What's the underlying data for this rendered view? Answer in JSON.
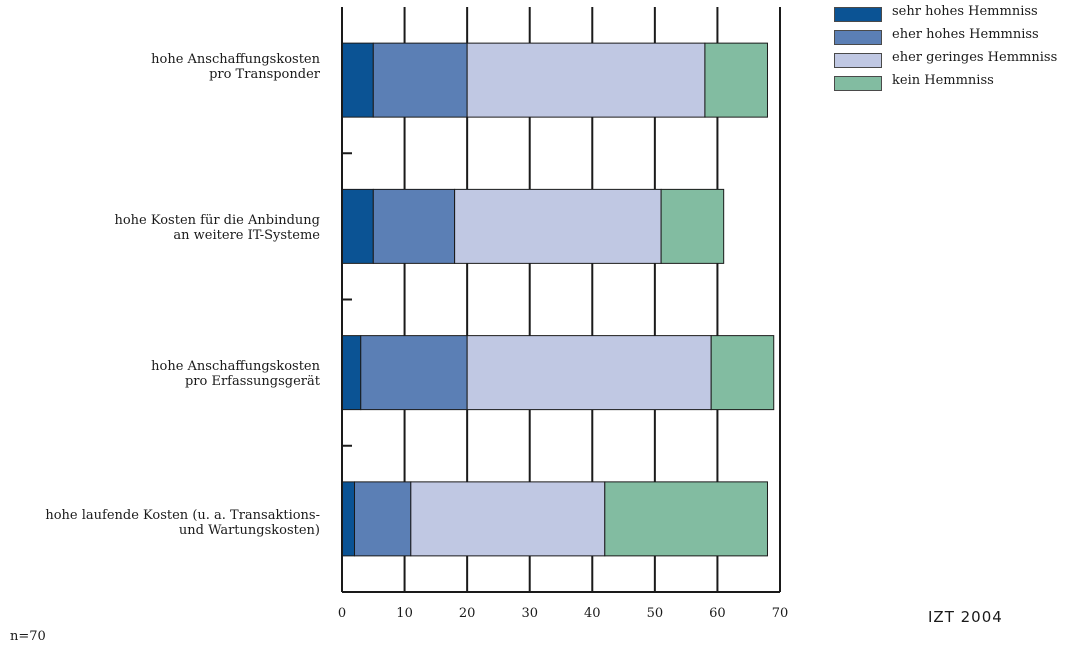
{
  "chart_data": {
    "type": "bar",
    "orientation": "horizontal",
    "stacked": true,
    "categories": [
      [
        "hohe Anschaffungskosten",
        "pro Transponder"
      ],
      [
        "hohe Kosten für die Anbindung",
        "an weitere IT-Systeme"
      ],
      [
        "hohe Anschaffungskosten",
        "pro Erfassungsgerät"
      ],
      [
        "hohe laufende Kosten (u. a. Transaktions-",
        "und Wartungskosten)"
      ]
    ],
    "series": [
      {
        "name": "sehr hohes Hemmniss",
        "color": "#0b5394",
        "values": [
          5,
          5,
          3,
          2
        ]
      },
      {
        "name": "eher hohes Hemmniss",
        "color": "#5b7fb5",
        "values": [
          15,
          13,
          17,
          9
        ]
      },
      {
        "name": "eher geringes Hemmniss",
        "color": "#c0c8e3",
        "values": [
          38,
          33,
          39,
          31
        ]
      },
      {
        "name": "kein Hemmniss",
        "color": "#82bca1",
        "values": [
          10,
          10,
          10,
          26
        ]
      }
    ],
    "xlim": [
      0,
      70
    ],
    "xticks": [
      0,
      10,
      20,
      30,
      40,
      50,
      60,
      70
    ],
    "grid": true,
    "legend_position": "top-right",
    "source": "IZT 2004",
    "note": "n=70"
  }
}
